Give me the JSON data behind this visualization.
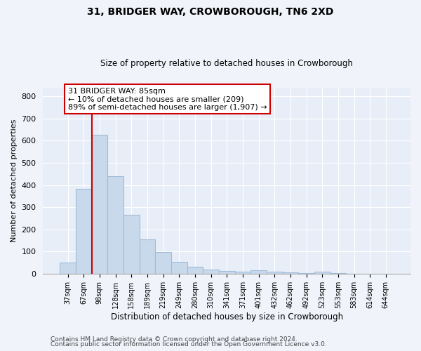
{
  "title1": "31, BRIDGER WAY, CROWBOROUGH, TN6 2XD",
  "title2": "Size of property relative to detached houses in Crowborough",
  "xlabel": "Distribution of detached houses by size in Crowborough",
  "ylabel": "Number of detached properties",
  "categories": [
    "37sqm",
    "67sqm",
    "98sqm",
    "128sqm",
    "158sqm",
    "189sqm",
    "219sqm",
    "249sqm",
    "280sqm",
    "310sqm",
    "341sqm",
    "371sqm",
    "401sqm",
    "432sqm",
    "462sqm",
    "492sqm",
    "523sqm",
    "553sqm",
    "583sqm",
    "614sqm",
    "644sqm"
  ],
  "values": [
    50,
    383,
    625,
    440,
    265,
    155,
    98,
    53,
    30,
    18,
    12,
    10,
    15,
    8,
    5,
    2,
    8,
    3,
    1,
    1,
    1
  ],
  "bar_color": "#c9d9ec",
  "bar_edge_color": "#a0bcd8",
  "vline_x": 1.5,
  "vline_color": "#cc0000",
  "annotation_line1": "31 BRIDGER WAY: 85sqm",
  "annotation_line2": "← 10% of detached houses are smaller (209)",
  "annotation_line3": "89% of semi-detached houses are larger (1,907) →",
  "annotation_box_color": "#ffffff",
  "annotation_box_edge": "#cc0000",
  "ylim": [
    0,
    840
  ],
  "yticks": [
    0,
    100,
    200,
    300,
    400,
    500,
    600,
    700,
    800
  ],
  "footer1": "Contains HM Land Registry data © Crown copyright and database right 2024.",
  "footer2": "Contains public sector information licensed under the Open Government Licence v3.0.",
  "bg_color": "#f0f4fa",
  "plot_bg_color": "#e8eef8"
}
